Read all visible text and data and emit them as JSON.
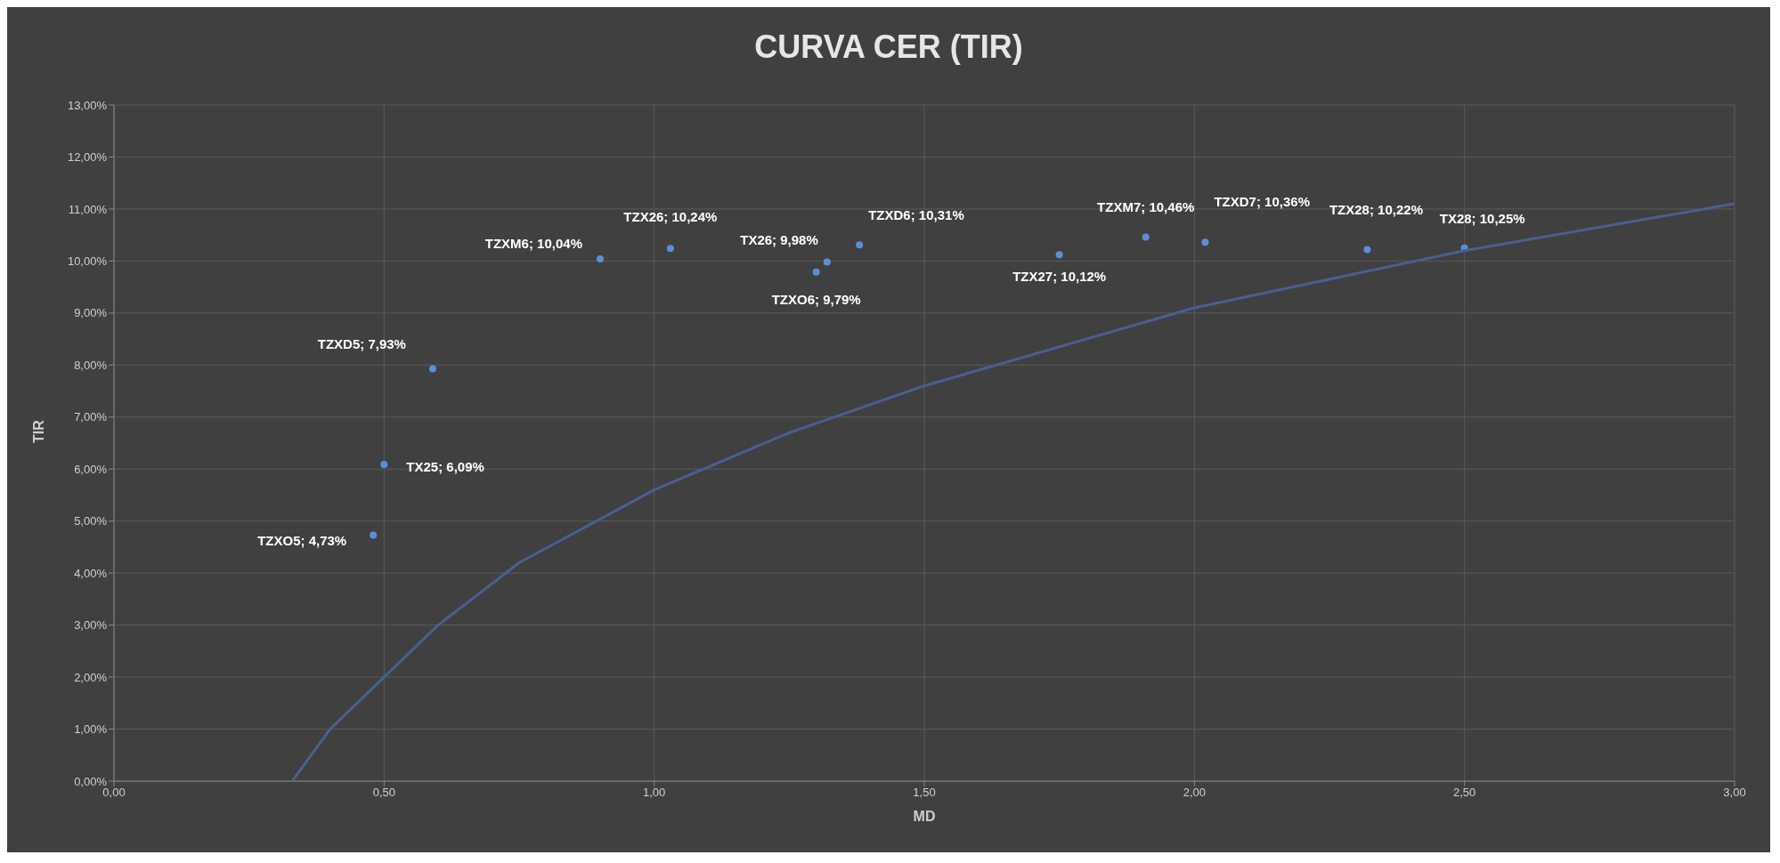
{
  "chart_data": {
    "type": "scatter",
    "title": "CURVA CER (TIR)",
    "xlabel": "MD",
    "ylabel": "TIR",
    "xlim": [
      0,
      3
    ],
    "xticks": [
      {
        "value": 0,
        "label": "0,00"
      },
      {
        "value": 0.5,
        "label": "0,50"
      },
      {
        "value": 1,
        "label": "1,00"
      },
      {
        "value": 1.5,
        "label": "1,50"
      },
      {
        "value": 2,
        "label": "2,00"
      },
      {
        "value": 2.5,
        "label": "2,50"
      },
      {
        "value": 3,
        "label": "3,00"
      }
    ],
    "ylim": [
      0,
      13
    ],
    "yticks": [
      {
        "value": 0,
        "label": "0,00%"
      },
      {
        "value": 1,
        "label": "1,00%"
      },
      {
        "value": 2,
        "label": "2,00%"
      },
      {
        "value": 3,
        "label": "3,00%"
      },
      {
        "value": 4,
        "label": "4,00%"
      },
      {
        "value": 5,
        "label": "5,00%"
      },
      {
        "value": 6,
        "label": "6,00%"
      },
      {
        "value": 7,
        "label": "7,00%"
      },
      {
        "value": 8,
        "label": "8,00%"
      },
      {
        "value": 9,
        "label": "9,00%"
      },
      {
        "value": 10,
        "label": "10,00%"
      },
      {
        "value": 11,
        "label": "11,00%"
      },
      {
        "value": 12,
        "label": "12,00%"
      },
      {
        "value": 13,
        "label": "13,00%"
      }
    ],
    "grid": true,
    "legend": false,
    "series": [
      {
        "color": "#5b8fd6",
        "marker": "circle",
        "x": [
          0.48,
          0.5,
          0.59,
          0.9,
          1.03,
          1.3,
          1.32,
          1.38,
          1.75,
          1.91,
          2.02,
          2.32,
          2.5
        ],
        "values": [
          4.73,
          6.09,
          7.93,
          10.04,
          10.24,
          9.79,
          9.98,
          10.31,
          10.12,
          10.46,
          10.36,
          10.22,
          10.25
        ],
        "value_labels": [
          "TZXO5; 4,73%",
          "TX25; 6,09%",
          "TZXD5; 7,93%",
          "TZXM6; 10,04%",
          "TZX26; 10,24%",
          "TZXO6; 9,79%",
          "TX26; 9,98%",
          "TZXD6; 10,31%",
          "TZX27; 10,12%",
          "TZXM7; 10,46%",
          "TZXD7; 10,36%",
          "TZX28; 10,22%",
          "TX28; 10,25%"
        ]
      },
      {
        "type": "line",
        "color": "#4a5f8f",
        "marker": "none",
        "x": [
          0.33,
          0.4,
          0.5,
          0.6,
          0.75,
          1,
          1.25,
          1.5,
          2,
          2.5,
          3
        ],
        "values": [
          0,
          1.0,
          2.0,
          3.0,
          4.2,
          5.6,
          6.7,
          7.6,
          9.1,
          10.2,
          11.1
        ]
      }
    ]
  }
}
